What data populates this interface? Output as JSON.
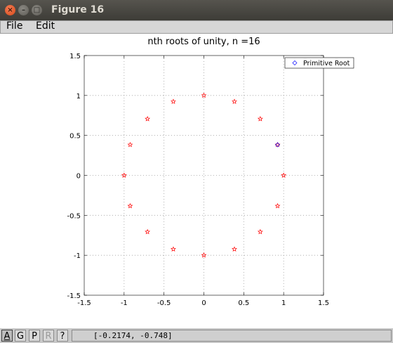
{
  "window": {
    "title": "Figure 16",
    "close_glyph": "×",
    "minimize_glyph": "–",
    "maximize_glyph": "□"
  },
  "menu": {
    "file_label": "File",
    "edit_label": "Edit"
  },
  "toolbar": {
    "buttons": [
      "A",
      "G",
      "P",
      "R",
      "?"
    ],
    "coordinates": "[-0.2174, -0.748]"
  },
  "colors": {
    "roots": "#ff0000",
    "primitive": "#0000ff",
    "grid": "#a0a0a0"
  },
  "chart_data": {
    "type": "scatter",
    "title": "nth roots of unity, n =16",
    "xlabel": "",
    "ylabel": "",
    "xlim": [
      -1.5,
      1.5
    ],
    "ylim": [
      -1.5,
      1.5
    ],
    "xticks": [
      -1.5,
      -1,
      -0.5,
      0,
      0.5,
      1,
      1.5
    ],
    "yticks": [
      -1.5,
      -1,
      -0.5,
      0,
      0.5,
      1,
      1.5
    ],
    "xtick_labels": [
      "-1.5",
      "-1",
      "-0.5",
      "0",
      "0.5",
      "1",
      "1.5"
    ],
    "ytick_labels": [
      "-1.5",
      "-1",
      "-0.5",
      "0",
      "0.5",
      "1",
      "1.5"
    ],
    "grid": true,
    "legend_position": "top-right",
    "series": [
      {
        "name": "",
        "marker": "star",
        "color": "#ff0000",
        "x": [
          1,
          0.924,
          0.707,
          0.383,
          0,
          -0.383,
          -0.707,
          -0.924,
          -1,
          -0.924,
          -0.707,
          -0.383,
          0,
          0.383,
          0.707,
          0.924
        ],
        "y": [
          0,
          0.383,
          0.707,
          0.924,
          1,
          0.924,
          0.707,
          0.383,
          0,
          -0.383,
          -0.707,
          -0.924,
          -1,
          -0.924,
          -0.707,
          -0.383
        ]
      },
      {
        "name": "Primitive Root",
        "marker": "diamond",
        "color": "#0000ff",
        "x": [
          0.924
        ],
        "y": [
          0.383
        ]
      }
    ]
  }
}
